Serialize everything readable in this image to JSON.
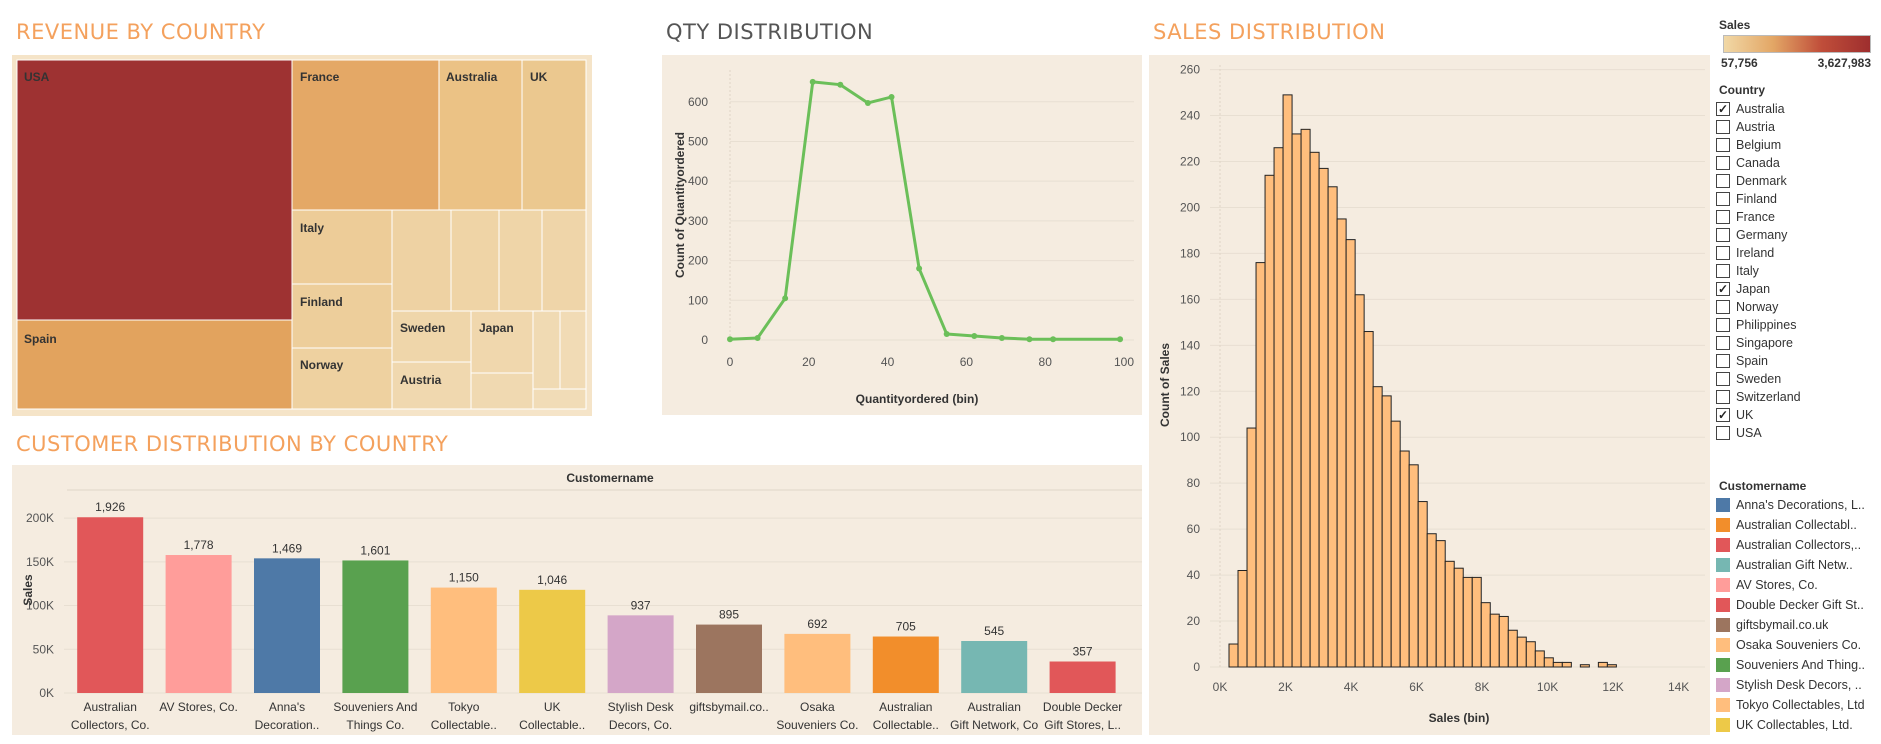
{
  "titles": {
    "revenue": "REVENUE BY COUNTRY",
    "qty": "QTY DISTRIBUTION",
    "sales": "SALES DISTRIBUTION",
    "customer": "CUSTOMER DISTRIBUTION BY COUNTRY"
  },
  "colors": {
    "accent": "#F4A15D",
    "panel_bg": "#F5ECE0",
    "line": "#6BBF59",
    "histogram": "#FFBE7D"
  },
  "legend": {
    "sales_title": "Sales",
    "sales_min": "57,756",
    "sales_max": "3,627,983",
    "country_title": "Country",
    "countries": [
      {
        "name": "Australia",
        "checked": true
      },
      {
        "name": "Austria",
        "checked": false
      },
      {
        "name": "Belgium",
        "checked": false
      },
      {
        "name": "Canada",
        "checked": false
      },
      {
        "name": "Denmark",
        "checked": false
      },
      {
        "name": "Finland",
        "checked": false
      },
      {
        "name": "France",
        "checked": false
      },
      {
        "name": "Germany",
        "checked": false
      },
      {
        "name": "Ireland",
        "checked": false
      },
      {
        "name": "Italy",
        "checked": false
      },
      {
        "name": "Japan",
        "checked": true
      },
      {
        "name": "Norway",
        "checked": false
      },
      {
        "name": "Philippines",
        "checked": false
      },
      {
        "name": "Singapore",
        "checked": false
      },
      {
        "name": "Spain",
        "checked": false
      },
      {
        "name": "Sweden",
        "checked": false
      },
      {
        "name": "Switzerland",
        "checked": false
      },
      {
        "name": "UK",
        "checked": true
      },
      {
        "name": "USA",
        "checked": false
      }
    ],
    "customer_title": "Customername",
    "customers": [
      {
        "name": "Anna's Decorations, L..",
        "color": "#4E79A7"
      },
      {
        "name": "Australian Collectabl..",
        "color": "#F28E2B"
      },
      {
        "name": "Australian Collectors,..",
        "color": "#E15759"
      },
      {
        "name": "Australian Gift Netw..",
        "color": "#76B7B2"
      },
      {
        "name": "AV Stores, Co.",
        "color": "#FF9D9A"
      },
      {
        "name": "Double Decker Gift St..",
        "color": "#E15759"
      },
      {
        "name": "giftsbymail.co.uk",
        "color": "#9C755F"
      },
      {
        "name": "Osaka Souveniers Co.",
        "color": "#FFBE7D"
      },
      {
        "name": "Souveniers And Thing..",
        "color": "#59A14F"
      },
      {
        "name": "Stylish Desk Decors, ..",
        "color": "#D4A6C8"
      },
      {
        "name": "Tokyo Collectables, Ltd",
        "color": "#FFBE7D"
      },
      {
        "name": "UK Collectables, Ltd.",
        "color": "#EDC948"
      }
    ]
  },
  "chart_data": [
    {
      "type": "treemap",
      "title": "REVENUE BY COUNTRY",
      "labels": [
        "USA",
        "France",
        "Australia",
        "UK",
        "Italy",
        "Finland",
        "Norway",
        "Spain",
        "Sweden",
        "Japan",
        "Austria"
      ],
      "color_scale": {
        "title": "Sales",
        "min": "57,756",
        "max": "3,627,983"
      }
    },
    {
      "type": "line",
      "title": "QTY DISTRIBUTION",
      "xlabel": "Quantityordered (bin)",
      "ylabel": "Count of Quantityordered",
      "x": [
        0,
        7,
        14,
        21,
        28,
        35,
        41,
        48,
        55,
        62,
        69,
        76,
        82,
        99
      ],
      "y": [
        2,
        5,
        105,
        650,
        643,
        597,
        612,
        180,
        15,
        10,
        5,
        2,
        2,
        2
      ],
      "xlim": [
        0,
        100
      ],
      "ylim": [
        0,
        680
      ],
      "xticks": [
        "0",
        "20",
        "40",
        "60",
        "80",
        "100"
      ],
      "yticks": [
        "0",
        "100",
        "200",
        "300",
        "400",
        "500",
        "600"
      ]
    },
    {
      "type": "bar",
      "title": "SALES DISTRIBUTION",
      "xlabel": "Sales (bin)",
      "ylabel": "Count of Sales",
      "bin_width": 275,
      "bin_start": 275,
      "values": [
        10,
        42,
        104,
        176,
        214,
        226,
        249,
        232,
        234,
        224,
        217,
        209,
        195,
        186,
        162,
        146,
        122,
        118,
        107,
        94,
        88,
        72,
        58,
        55,
        46,
        43,
        39,
        39,
        28,
        23,
        22,
        16,
        13,
        11,
        7,
        4,
        2,
        2,
        0,
        1,
        0,
        2,
        1,
        0,
        0,
        0,
        0,
        0,
        0,
        0,
        0,
        0,
        0,
        0,
        0,
        1
      ],
      "xlim": [
        0,
        14500
      ],
      "ylim": [
        0,
        262
      ],
      "xticks": [
        "0K",
        "2K",
        "4K",
        "6K",
        "8K",
        "10K",
        "12K",
        "14K"
      ],
      "yticks": [
        "0",
        "20",
        "40",
        "60",
        "80",
        "100",
        "120",
        "140",
        "160",
        "180",
        "200",
        "220",
        "240",
        "260"
      ]
    },
    {
      "type": "bar",
      "title": "CUSTOMER DISTRIBUTION BY COUNTRY",
      "header": "Customername",
      "ylabel": "Sales",
      "categories": [
        "Australian Collectors, Co.",
        "AV Stores, Co.",
        "Anna's Decoration..",
        "Souveniers And Things Co.",
        "Tokyo Collectable..",
        "UK Collectable..",
        "Stylish Desk Decors, Co.",
        "giftsbymail.co..",
        "Osaka Souveniers Co.",
        "Australian Collectable..",
        "Australian Gift Network, Co",
        "Double Decker Gift Stores, L.."
      ],
      "values": [
        200995,
        157807,
        153996,
        151571,
        120563,
        118008,
        88805,
        78241,
        67605,
        64591,
        59469,
        36019
      ],
      "data_labels": [
        "1,926",
        "1,778",
        "1,469",
        "1,601",
        "1,150",
        "1,046",
        "937",
        "895",
        "692",
        "705",
        "545",
        "357"
      ],
      "colors": [
        "#E15759",
        "#FF9D9A",
        "#4E79A7",
        "#59A14F",
        "#FFBE7D",
        "#EDC948",
        "#D4A6C8",
        "#9C755F",
        "#FFBE7D",
        "#F28E2B",
        "#76B7B2",
        "#E15759"
      ],
      "ylim": [
        0,
        215000
      ],
      "yticks": [
        "0K",
        "50K",
        "100K",
        "150K",
        "200K"
      ]
    }
  ]
}
